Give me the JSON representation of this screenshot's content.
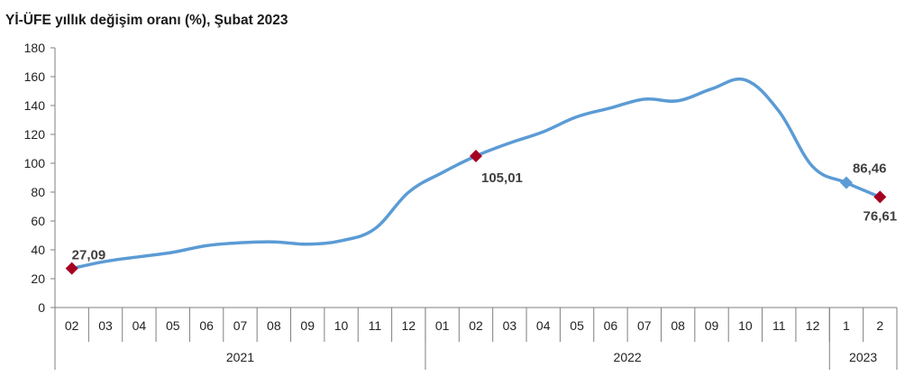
{
  "chart_data": {
    "type": "line",
    "title": "Yİ-ÜFE yıllık değişim oranı (%), Şubat 2023",
    "xlabel": "",
    "ylabel": "",
    "ylim": [
      0,
      180
    ],
    "yticks": [
      0,
      20,
      40,
      60,
      80,
      100,
      120,
      140,
      160,
      180
    ],
    "grid": false,
    "legend": "none",
    "categories": [
      "02",
      "03",
      "04",
      "05",
      "06",
      "07",
      "08",
      "09",
      "10",
      "11",
      "12",
      "01",
      "02",
      "03",
      "04",
      "05",
      "06",
      "07",
      "08",
      "09",
      "10",
      "11",
      "12",
      "1",
      "2"
    ],
    "year_groups": [
      {
        "label": "2021",
        "count": 11
      },
      {
        "label": "2022",
        "count": 12
      },
      {
        "label": "2023",
        "count": 2
      }
    ],
    "series": [
      {
        "values": [
          27.09,
          32.0,
          35.2,
          38.3,
          42.9,
          44.9,
          45.5,
          43.9,
          46.3,
          54.6,
          79.9,
          93.5,
          105.01,
          114.0,
          121.8,
          132.2,
          138.3,
          144.4,
          143.3,
          151.5,
          157.7,
          136.0,
          97.7,
          86.46,
          76.61
        ],
        "color": "#5b9bd5"
      }
    ],
    "markers": [
      {
        "index": 0,
        "label": "27,09",
        "shape": "diamond",
        "color": "#a50021"
      },
      {
        "index": 12,
        "label": "105,01",
        "shape": "diamond",
        "color": "#a50021"
      },
      {
        "index": 23,
        "label": "86,46",
        "shape": "diamond",
        "color": "#5b9bd5"
      },
      {
        "index": 24,
        "label": "76,61",
        "shape": "diamond",
        "color": "#a50021"
      }
    ]
  }
}
